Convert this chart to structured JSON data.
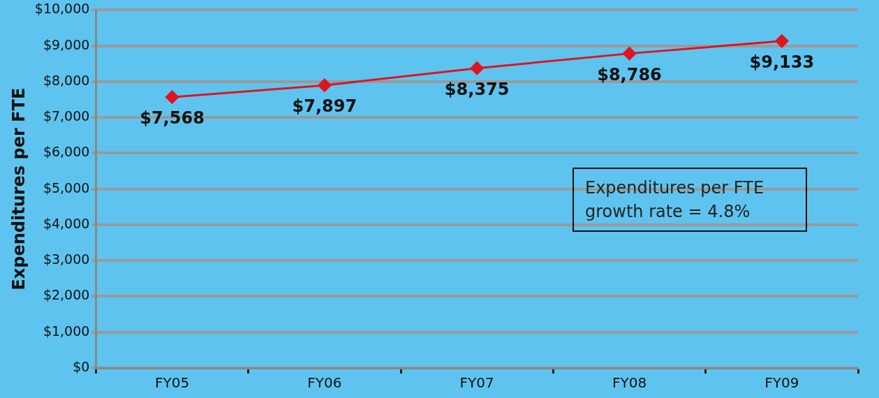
{
  "chart_data": {
    "type": "line",
    "ylabel": "Expenditures per FTE",
    "categories": [
      "FY05",
      "FY06",
      "FY07",
      "FY08",
      "FY09"
    ],
    "series": [
      {
        "color": "#e0141e",
        "values": [
          7568,
          7897,
          8375,
          8786,
          9133
        ]
      }
    ],
    "value_labels": [
      "$7,568",
      "$7,897",
      "$8,375",
      "$8,786",
      "$9,133"
    ],
    "ylim": [
      0,
      10000
    ],
    "yticks": [
      {
        "value": 0,
        "label": "$0"
      },
      {
        "value": 1000,
        "label": "$1,000"
      },
      {
        "value": 2000,
        "label": "$2,000"
      },
      {
        "value": 3000,
        "label": "$3,000"
      },
      {
        "value": 4000,
        "label": "$4,000"
      },
      {
        "value": 5000,
        "label": "$5,000"
      },
      {
        "value": 6000,
        "label": "$6,000"
      },
      {
        "value": 7000,
        "label": "$7,000"
      },
      {
        "value": 8000,
        "label": "$8,000"
      },
      {
        "value": 9000,
        "label": "$9,000"
      },
      {
        "value": 10000,
        "label": "$10,000"
      }
    ],
    "annotations": [
      "Expenditures per FTE growth rate = 4.8%"
    ],
    "grid": "y",
    "legend": false,
    "marker": "diamond",
    "line_style": "solid"
  }
}
